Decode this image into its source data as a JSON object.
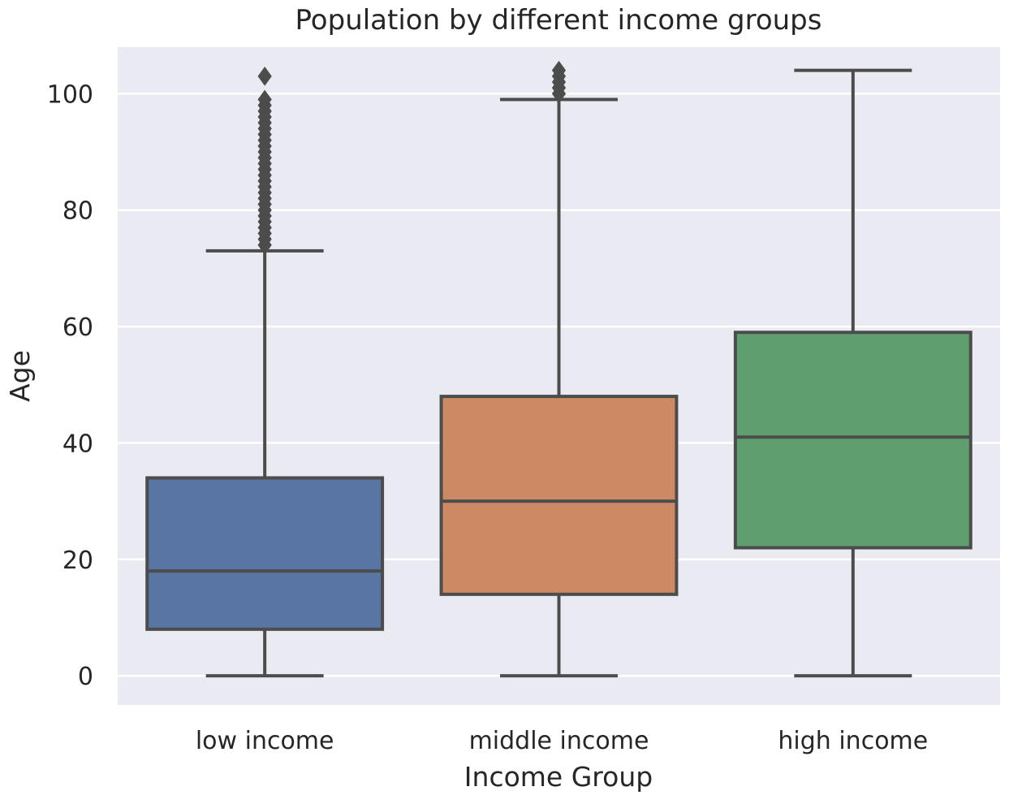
{
  "chart_data": {
    "type": "box",
    "title": "Population by different income groups",
    "xlabel": "Income Group",
    "ylabel": "Age",
    "ylim": [
      -5,
      108
    ],
    "y_ticks": [
      0,
      20,
      40,
      60,
      80,
      100
    ],
    "grid": true,
    "categories": [
      "low income",
      "middle income",
      "high income"
    ],
    "boxes": [
      {
        "category": "low income",
        "color": "#5875a4",
        "whisker_low": 0,
        "q1": 8,
        "median": 18,
        "q3": 34,
        "whisker_high": 73,
        "outliers": [
          74,
          75,
          76,
          77,
          78,
          79,
          80,
          81,
          82,
          83,
          84,
          85,
          86,
          87,
          88,
          89,
          90,
          91,
          92,
          93,
          94,
          95,
          96,
          97,
          98,
          99,
          103
        ]
      },
      {
        "category": "middle income",
        "color": "#cc8963",
        "whisker_low": 0,
        "q1": 14,
        "median": 30,
        "q3": 48,
        "whisker_high": 99,
        "outliers": [
          100,
          101,
          102,
          103,
          104
        ]
      },
      {
        "category": "high income",
        "color": "#5f9e6e",
        "whisker_low": 0,
        "q1": 22,
        "median": 41,
        "q3": 59,
        "whisker_high": 104,
        "outliers": []
      }
    ]
  },
  "colors": {
    "plot_background": "#eaeaf2",
    "grid": "#ffffff",
    "line": "#4c4c4c"
  }
}
